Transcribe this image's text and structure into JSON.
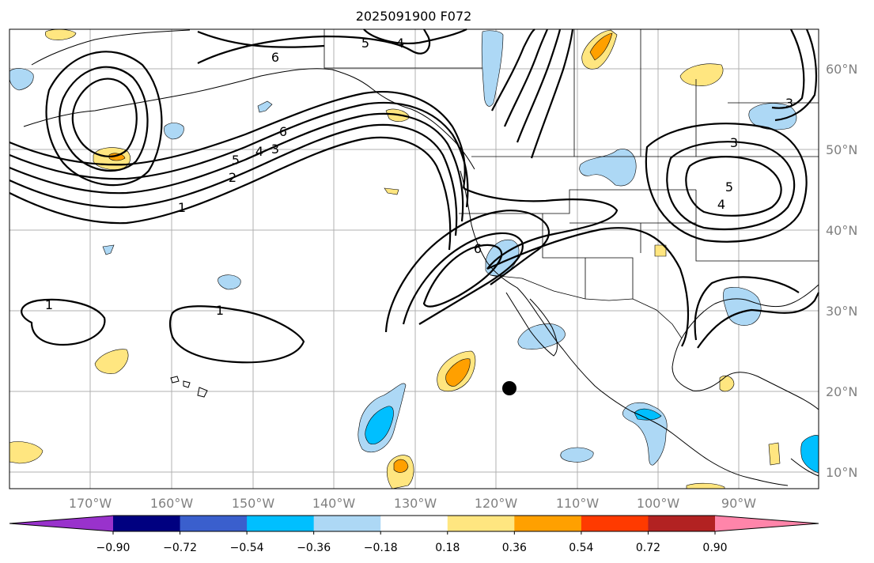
{
  "title": "2025091900 F072",
  "lat_labels": [
    "60°N",
    "50°N",
    "40°N",
    "30°N",
    "20°N",
    "10°N"
  ],
  "lon_labels": [
    "170°W",
    "160°W",
    "150°W",
    "140°W",
    "130°W",
    "120°W",
    "110°W",
    "100°W",
    "90°W"
  ],
  "colorbar": {
    "ticks": [
      "−0.90",
      "−0.72",
      "−0.54",
      "−0.36",
      "−0.18",
      "0.18",
      "0.36",
      "0.54",
      "0.72",
      "0.90"
    ],
    "colors": [
      "#9932cc",
      "#000080",
      "#3a5fcd",
      "#00bfff",
      "#add8f5",
      "#ffffff",
      "#ffe680",
      "#ffa000",
      "#ff3a00",
      "#b22222",
      "#ff85aa"
    ]
  },
  "contour_labels": [
    "1",
    "1",
    "1",
    "2",
    "3",
    "4",
    "5",
    "6",
    "6",
    "5",
    "4",
    "3",
    "5",
    "4",
    "3",
    "6"
  ],
  "marker": "point"
}
